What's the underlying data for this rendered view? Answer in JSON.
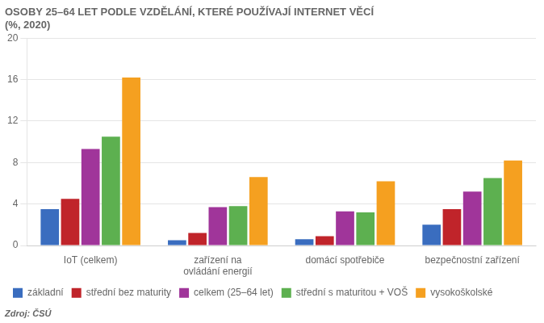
{
  "chart_data": {
    "type": "bar",
    "title": [
      "OSOBY 25–64 LET PODLE VZDĚLÁNÍ, KTERÉ POUŽÍVAJÍ INTERNET VĚCÍ",
      "(%, 2020)"
    ],
    "annotation": "Zdroj: ČSÚ",
    "categories": [
      "IoT (celkem)",
      "zařízení na\novládání energií",
      "domácí spotřebiče",
      "bezpečnostní zařízení"
    ],
    "series": [
      {
        "name": "základní",
        "color": "#3a6dbf",
        "values": [
          3.5,
          0.5,
          0.6,
          2.0
        ]
      },
      {
        "name": "střední bez maturity",
        "color": "#c0242a",
        "values": [
          4.5,
          1.2,
          0.9,
          3.5
        ]
      },
      {
        "name": "celkem (25–64 let)",
        "color": "#a0359a",
        "values": [
          9.3,
          3.7,
          3.3,
          5.2
        ]
      },
      {
        "name": "střední s maturitou + VOŠ",
        "color": "#5db050",
        "values": [
          10.5,
          3.8,
          3.2,
          6.5
        ]
      },
      {
        "name": "vysokoškolské",
        "color": "#f5a020",
        "values": [
          16.2,
          6.6,
          6.2,
          8.2
        ]
      }
    ],
    "ylim": [
      0,
      20
    ],
    "yticks": [
      0,
      4,
      8,
      12,
      16,
      20
    ],
    "grid": true,
    "legend": "bottom"
  }
}
